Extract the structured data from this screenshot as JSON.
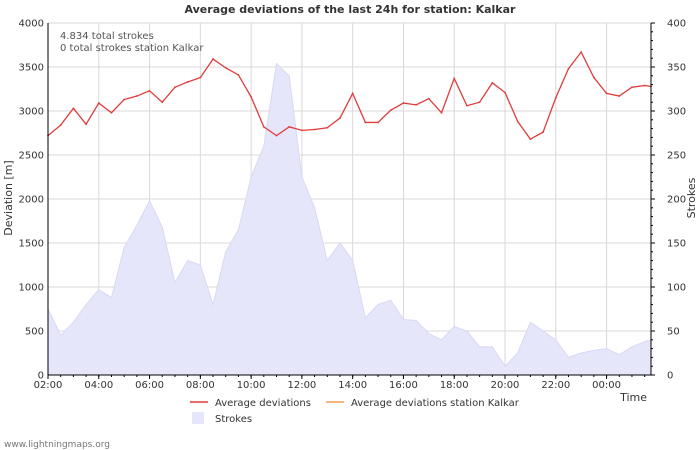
{
  "chart_data": {
    "type": "line",
    "title": "Average deviations of the last 24h for station: Kalkar",
    "info": {
      "total_strokes": "4.834 total strokes",
      "station_strokes": "0 total strokes station Kalkar"
    },
    "xlabel": "Time",
    "ylabel_left": "Deviation  [m]",
    "ylabel_right": "Strokes",
    "x_ticks": [
      "02:00",
      "04:00",
      "06:00",
      "08:00",
      "10:00",
      "12:00",
      "14:00",
      "16:00",
      "18:00",
      "20:00",
      "22:00",
      "00:00"
    ],
    "x_start_hour": 2,
    "x_end_hour": 25.75,
    "y_left_ticks": [
      0,
      500,
      1000,
      1500,
      2000,
      2500,
      3000,
      3500,
      4000
    ],
    "y_left_range": [
      0,
      4000
    ],
    "y_right_ticks": [
      0,
      50,
      100,
      150,
      200,
      250,
      300,
      350,
      400
    ],
    "y_right_range": [
      0,
      400
    ],
    "grid": true,
    "colors": {
      "deviation": "#e03c3c",
      "station_deviation": "#f0a050",
      "strokes_fill": "#e6e6fa",
      "strokes_stroke": "#d8d8f4",
      "grid": "#d9d9d9",
      "axis": "#000000"
    },
    "series": [
      {
        "name": "Average deviations",
        "axis": "left",
        "kind": "line",
        "x": [
          2,
          2.5,
          3,
          3.5,
          4,
          4.5,
          5,
          5.5,
          6,
          6.5,
          7,
          7.5,
          8,
          8.5,
          9,
          9.5,
          10,
          10.5,
          11,
          11.5,
          12,
          12.5,
          13,
          13.5,
          14,
          14.5,
          15,
          15.5,
          16,
          16.5,
          17,
          17.5,
          18,
          18.5,
          19,
          19.5,
          20,
          20.5,
          21,
          21.5,
          22,
          22.5,
          23,
          23.5,
          24,
          24.5,
          25,
          25.5,
          25.75
        ],
        "values": [
          2720,
          2840,
          3030,
          2850,
          3090,
          2980,
          3130,
          3170,
          3230,
          3100,
          3270,
          3330,
          3380,
          3590,
          3490,
          3410,
          3160,
          2820,
          2720,
          2820,
          2780,
          2790,
          2810,
          2920,
          3200,
          2870,
          2870,
          3010,
          3090,
          3070,
          3140,
          2980,
          3370,
          3060,
          3100,
          3320,
          3210,
          2880,
          2680,
          2760,
          3150,
          3480,
          3670,
          3380,
          3200,
          3170,
          3270,
          3290,
          3280
        ]
      },
      {
        "name": "Average deviations station Kalkar",
        "axis": "left",
        "kind": "line",
        "x": [],
        "values": []
      },
      {
        "name": "Strokes",
        "axis": "right",
        "kind": "area",
        "x": [
          2,
          2.5,
          3,
          3.5,
          4,
          4.5,
          5,
          5.5,
          6,
          6.5,
          7,
          7.5,
          8,
          8.5,
          9,
          9.5,
          10,
          10.5,
          11,
          11.5,
          12,
          12.5,
          13,
          13.5,
          14,
          14.5,
          15,
          15.5,
          16,
          16.5,
          17,
          17.5,
          18,
          18.5,
          19,
          19.5,
          20,
          20.5,
          21,
          21.5,
          22,
          22.5,
          23,
          23.5,
          24,
          24.5,
          25,
          25.5,
          25.75
        ],
        "values": [
          75,
          45,
          60,
          80,
          97,
          88,
          145,
          170,
          198,
          168,
          105,
          130,
          125,
          80,
          140,
          165,
          225,
          260,
          354,
          340,
          225,
          190,
          130,
          150,
          130,
          65,
          80,
          85,
          63,
          62,
          47,
          40,
          55,
          50,
          32,
          32,
          10,
          25,
          60,
          50,
          40,
          20,
          25,
          28,
          30,
          23,
          32,
          38,
          40
        ]
      }
    ],
    "legend": [
      {
        "label": "Average deviations",
        "marker": "line",
        "color": "#e03c3c"
      },
      {
        "label": "Average deviations station Kalkar",
        "marker": "line",
        "color": "#f0a050"
      },
      {
        "label": "Strokes",
        "marker": "box",
        "color": "#e6e6fa"
      }
    ],
    "legend_position": "bottom",
    "credit": "www.lightningmaps.org"
  }
}
